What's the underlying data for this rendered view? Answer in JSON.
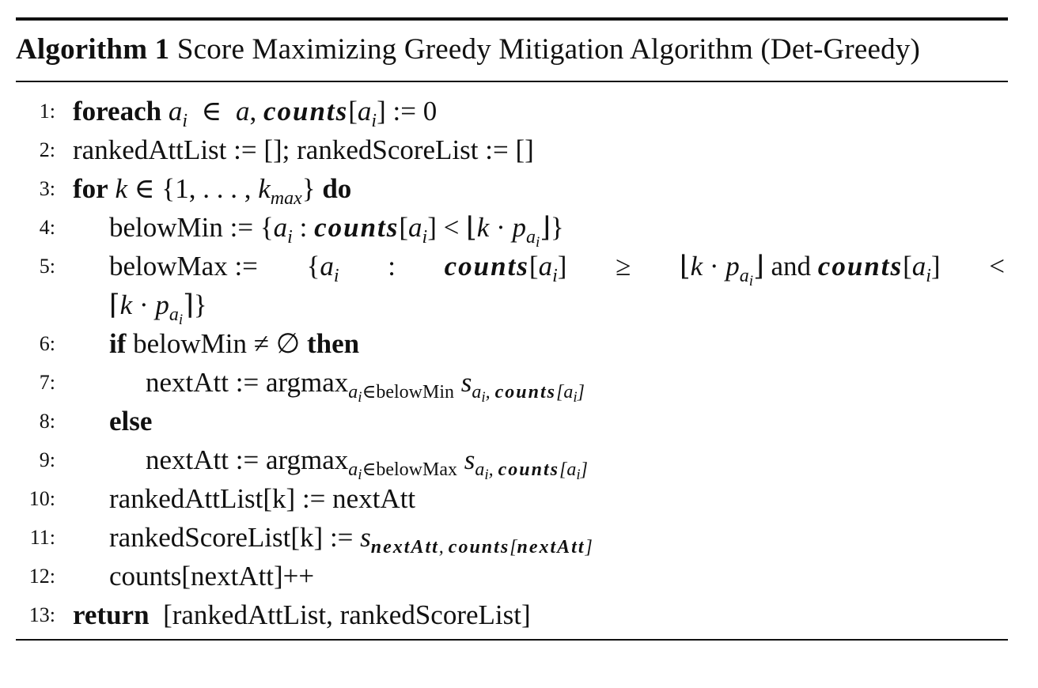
{
  "caption": {
    "label": "Algorithm 1",
    "title": "Score Maximizing Greedy Mitigation Algorithm (Det-Greedy)"
  },
  "lines": [
    {
      "no": "1:"
    },
    {
      "no": "2:",
      "text": "rankedAttList := []; rankedScoreList := []"
    },
    {
      "no": "3:"
    },
    {
      "no": "4:"
    },
    {
      "no": "5:"
    },
    {
      "no": "6:"
    },
    {
      "no": "7:"
    },
    {
      "no": "8:"
    },
    {
      "no": "9:"
    },
    {
      "no": "10:",
      "text": "rankedAttList[k] := nextAtt"
    },
    {
      "no": "11:"
    },
    {
      "no": "12:",
      "text": "counts[nextAtt]++"
    },
    {
      "no": "13:"
    }
  ],
  "keywords": {
    "foreach": "foreach",
    "for": "for",
    "do": "do",
    "if": "if",
    "then": "then",
    "else": "else",
    "return": "return"
  },
  "strings": {
    "belowMin": "belowMin",
    "belowMax": "belowMax",
    "nextAtt": "nextAtt",
    "argmax": "argmax",
    "and": "and",
    "rankedScoreListK": "rankedScoreList[k]",
    "returnValue": "[rankedAttList, rankedScoreList]"
  }
}
